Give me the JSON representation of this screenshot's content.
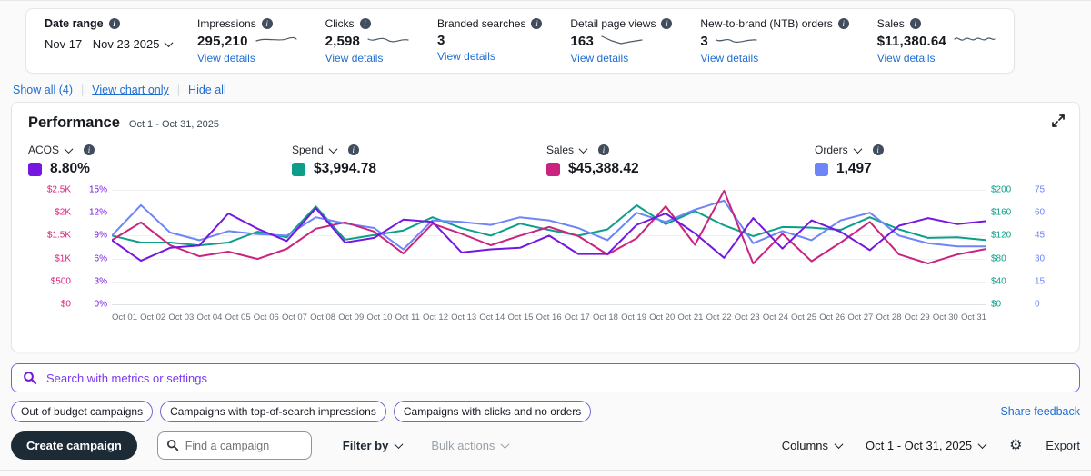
{
  "topbar": {
    "date_range": {
      "label": "Date range",
      "value": "Nov 17 - Nov 23 2025"
    },
    "metrics": [
      {
        "label": "Impressions",
        "value": "295,210",
        "link": "View details",
        "has_sparkline": true
      },
      {
        "label": "Clicks",
        "value": "2,598",
        "link": "View details",
        "has_sparkline": true
      },
      {
        "label": "Branded searches",
        "value": "3",
        "link": "View details",
        "has_sparkline": false
      },
      {
        "label": "Detail page views",
        "value": "163",
        "link": "View details",
        "has_sparkline": true
      },
      {
        "label": "New-to-brand (NTB) orders",
        "value": "3",
        "link": "View details",
        "has_sparkline": true
      },
      {
        "label": "Sales",
        "value": "$11,380.64",
        "link": "View details",
        "has_sparkline": true
      }
    ]
  },
  "view_links": {
    "show_all": "Show all (4)",
    "view_chart_only": "View chart only",
    "hide_all": "Hide all"
  },
  "performance": {
    "title": "Performance",
    "date_range": "Oct 1 - Oct 31, 2025",
    "selectors": [
      {
        "label": "ACOS",
        "value": "8.80%",
        "color": "#7517e0"
      },
      {
        "label": "Spend",
        "value": "$3,994.78",
        "color": "#0d9e8a"
      },
      {
        "label": "Sales",
        "value": "$45,388.42",
        "color": "#c9247e"
      },
      {
        "label": "Orders",
        "value": "1,497",
        "color": "#6c85f7"
      }
    ]
  },
  "chart_data": {
    "type": "line",
    "title": "Performance",
    "subtitle": "Oct 1 - Oct 31, 2025",
    "grid": true,
    "legend_position": "top",
    "x": [
      "Oct 01",
      "Oct 02",
      "Oct 03",
      "Oct 04",
      "Oct 05",
      "Oct 06",
      "Oct 07",
      "Oct 08",
      "Oct 09",
      "Oct 10",
      "Oct 11",
      "Oct 12",
      "Oct 13",
      "Oct 14",
      "Oct 15",
      "Oct 16",
      "Oct 17",
      "Oct 18",
      "Oct 19",
      "Oct 20",
      "Oct 21",
      "Oct 22",
      "Oct 23",
      "Oct 24",
      "Oct 25",
      "Oct 26",
      "Oct 27",
      "Oct 28",
      "Oct 29",
      "Oct 30",
      "Oct 31"
    ],
    "axes": [
      {
        "id": "sales",
        "position": "left-outer",
        "color": "#d6267e",
        "max": 2500,
        "min": 0,
        "ticks": [
          "$2.5K",
          "$2K",
          "$1.5K",
          "$1K",
          "$500",
          "$0"
        ]
      },
      {
        "id": "acos",
        "position": "left-inner",
        "color": "#7517e0",
        "max": 15,
        "min": 0,
        "ticks": [
          "15%",
          "12%",
          "9%",
          "6%",
          "3%",
          "0%"
        ]
      },
      {
        "id": "spend",
        "position": "right-inner",
        "color": "#0d9e8a",
        "max": 200,
        "min": 0,
        "ticks": [
          "$200",
          "$160",
          "$120",
          "$80",
          "$40",
          "$0"
        ]
      },
      {
        "id": "orders",
        "position": "right-outer",
        "color": "#6c85f7",
        "max": 75,
        "min": 0,
        "ticks": [
          "75",
          "60",
          "45",
          "30",
          "15",
          "0"
        ]
      }
    ],
    "series": [
      {
        "name": "ACOS",
        "unit": "%",
        "axis": "acos",
        "color": "#7517e0",
        "values": [
          8.4,
          5.7,
          7.4,
          7.7,
          11.9,
          9.9,
          8.3,
          12.6,
          8.1,
          8.7,
          11.1,
          10.8,
          6.8,
          7.2,
          7.4,
          9.0,
          6.6,
          6.6,
          10.4,
          11.9,
          9.3,
          6.1,
          11.3,
          7.3,
          11.0,
          9.5,
          7.1,
          10.3,
          11.3,
          10.5,
          10.9
        ]
      },
      {
        "name": "Spend",
        "unit": "$",
        "axis": "spend",
        "color": "#0d9e8a",
        "values": [
          120,
          108,
          108,
          103,
          108,
          127,
          117,
          171,
          113,
          121,
          129,
          152,
          133,
          120,
          141,
          130,
          120,
          131,
          173,
          140,
          163,
          138,
          119,
          135,
          134,
          130,
          152,
          131,
          116,
          117,
          112
        ]
      },
      {
        "name": "Sales",
        "unit": "$",
        "axis": "sales",
        "color": "#c9247e",
        "values": [
          1400,
          1790,
          1290,
          1050,
          1150,
          990,
          1210,
          1650,
          1790,
          1590,
          1110,
          1760,
          1540,
          1290,
          1500,
          1690,
          1490,
          1090,
          1440,
          2140,
          1300,
          2480,
          890,
          1540,
          940,
          1350,
          1800,
          1090,
          890,
          1090,
          1210
        ]
      },
      {
        "name": "Orders",
        "unit": "",
        "axis": "orders",
        "color": "#6c85f7",
        "values": [
          45,
          65,
          47,
          42,
          48,
          46,
          45,
          57,
          53,
          50,
          36,
          55,
          54,
          52,
          57,
          55,
          50,
          42,
          60,
          54,
          62,
          68,
          40,
          48,
          42,
          55,
          60,
          45,
          40,
          38,
          38
        ]
      }
    ]
  },
  "search": {
    "placeholder": "Search with metrics or settings"
  },
  "quick_filters": [
    "Out of budget campaigns",
    "Campaigns with top-of-search impressions",
    "Campaigns with clicks and no orders"
  ],
  "share_feedback": "Share feedback",
  "toolbar": {
    "create_campaign": "Create campaign",
    "find_placeholder": "Find a campaign",
    "filter_by": "Filter by",
    "bulk_actions": "Bulk actions",
    "columns": "Columns",
    "date_range": "Oct 1 - Oct 31, 2025",
    "export": "Export"
  }
}
